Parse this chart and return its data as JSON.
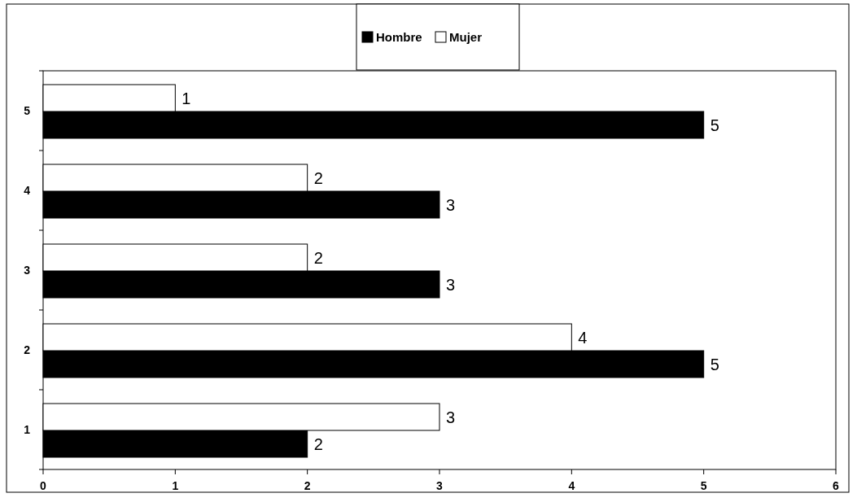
{
  "chart_data": {
    "type": "bar",
    "orientation": "horizontal",
    "categories": [
      "5",
      "4",
      "3",
      "2",
      "1"
    ],
    "series": [
      {
        "name": "Hombre",
        "color": "#000000",
        "values": [
          5,
          3,
          3,
          5,
          2
        ]
      },
      {
        "name": "Mujer",
        "color": "#ffffff",
        "values": [
          1,
          2,
          2,
          4,
          3
        ]
      }
    ],
    "xlim": [
      0,
      6
    ],
    "xticks": [
      0,
      1,
      2,
      3,
      4,
      5,
      6
    ],
    "data_labels": true,
    "legend": "top",
    "grid": false
  }
}
